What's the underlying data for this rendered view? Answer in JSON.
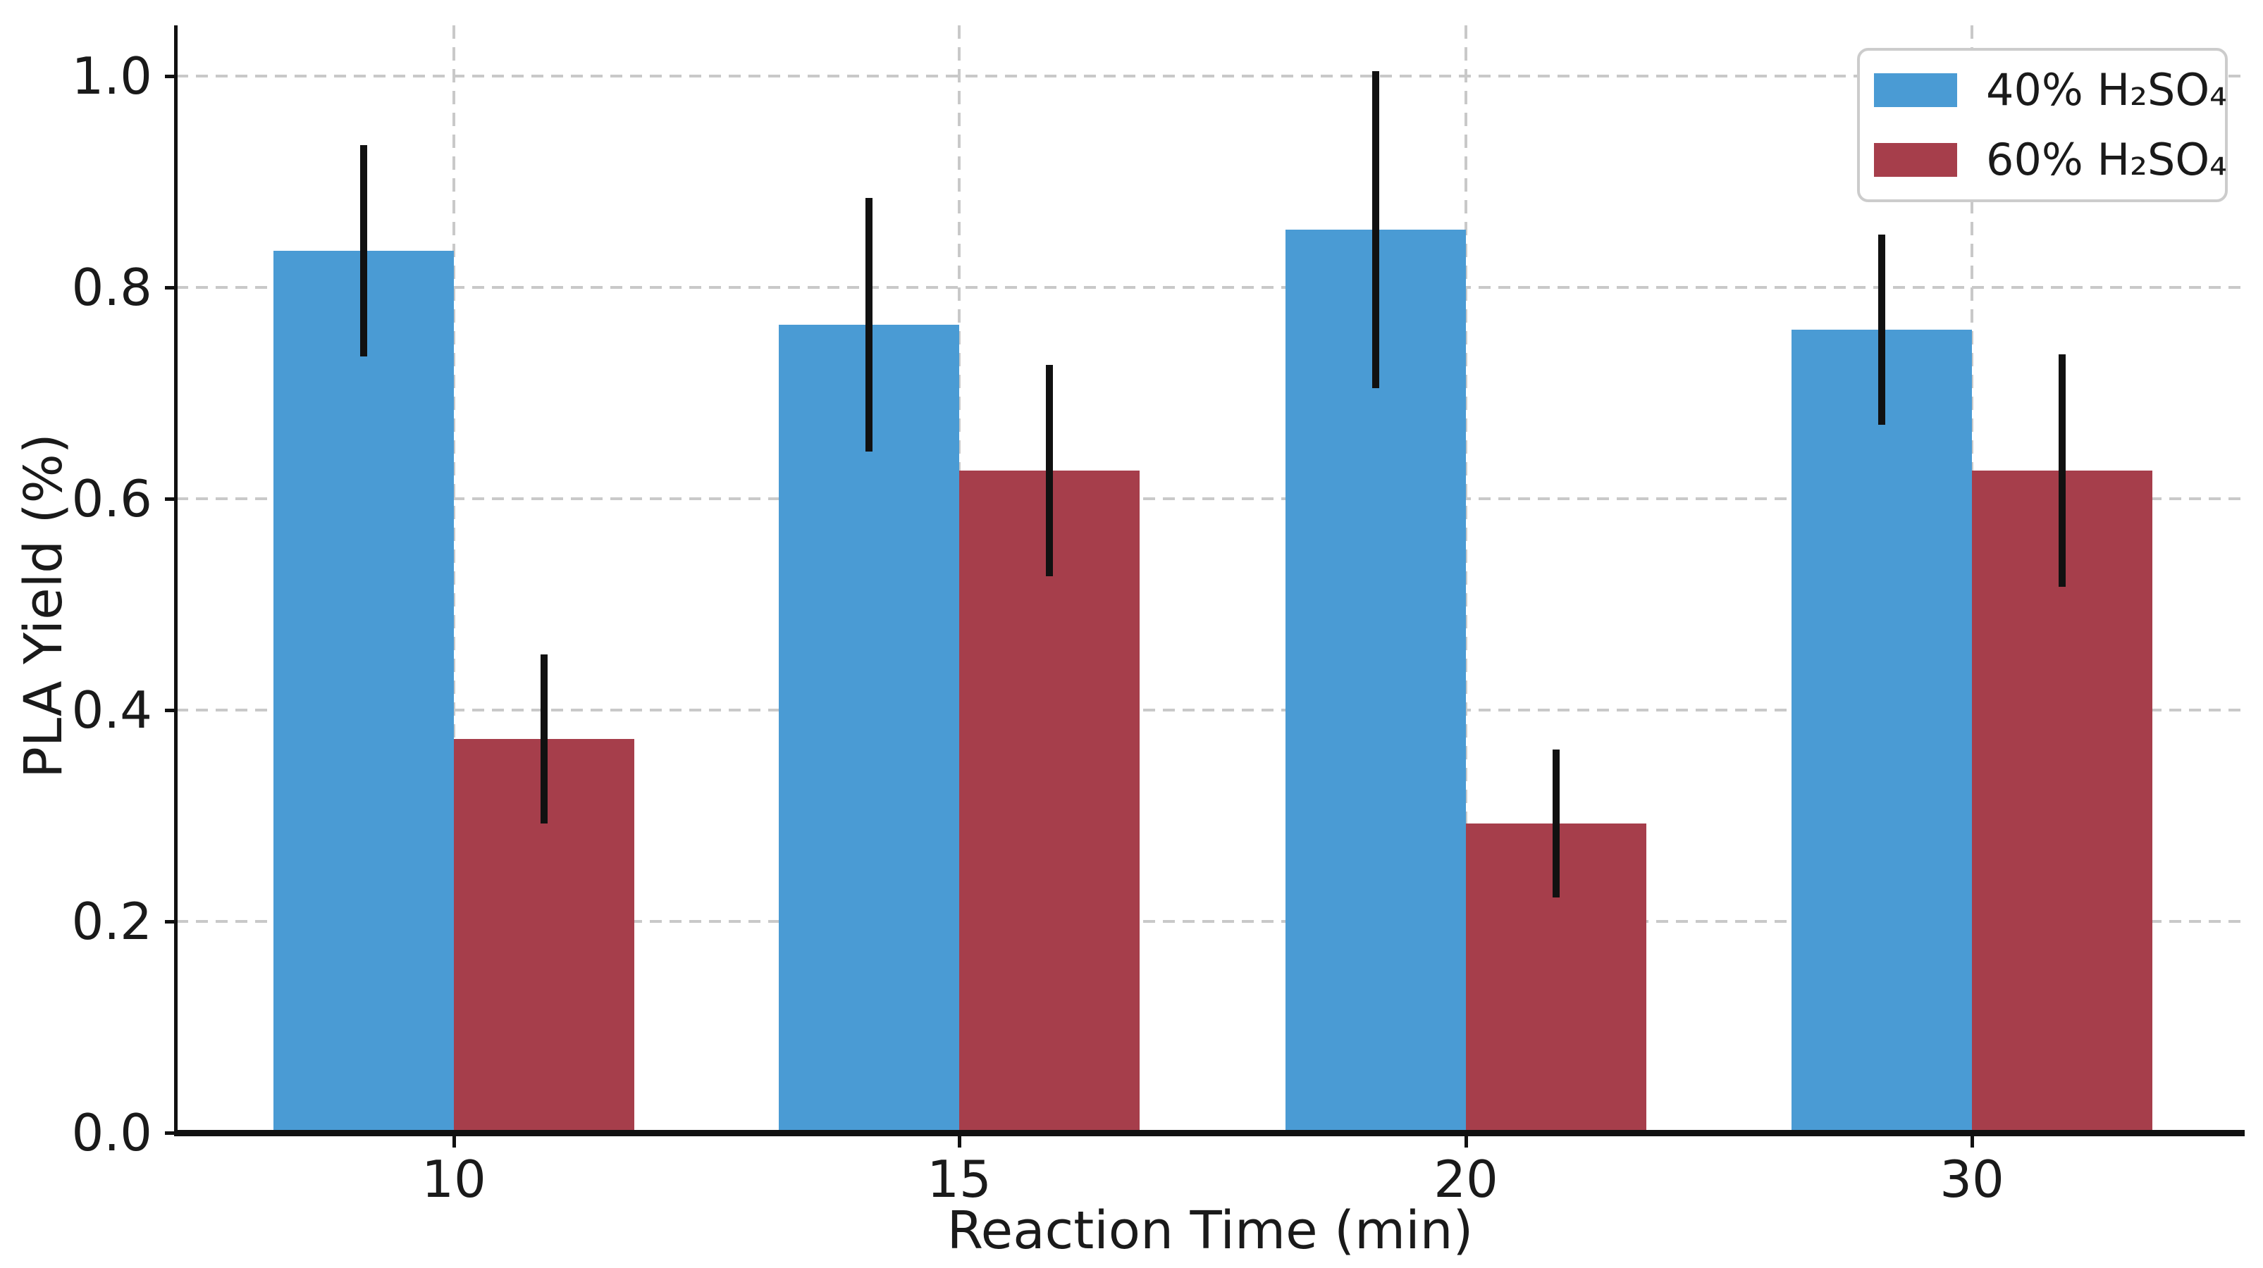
{
  "chart_data": {
    "type": "bar",
    "xlabel": "Reaction Time (min)",
    "ylabel": "PLA Yield (%)",
    "categories": [
      "10",
      "15",
      "20",
      "30"
    ],
    "series": [
      {
        "name": "40% H₂SO₄",
        "color": "#4A9BD4",
        "values": [
          0.835,
          0.765,
          0.855,
          0.76
        ],
        "errors": [
          0.1,
          0.12,
          0.15,
          0.09
        ]
      },
      {
        "name": "60% H₂SO₄",
        "color": "#A63E4B",
        "values": [
          0.373,
          0.627,
          0.293,
          0.627
        ],
        "errors": [
          0.08,
          0.1,
          0.07,
          0.11
        ]
      }
    ],
    "ytick_labels": [
      "0.0",
      "0.2",
      "0.4",
      "0.6",
      "0.8",
      "1.0"
    ],
    "ylim": [
      0,
      1.048
    ],
    "grid": true,
    "grid_color": "#c9c9c9",
    "errorbar_color": "#111111",
    "axis_color": "#111111",
    "text_color": "#1a1a1a",
    "legend_position": "upper-right"
  }
}
